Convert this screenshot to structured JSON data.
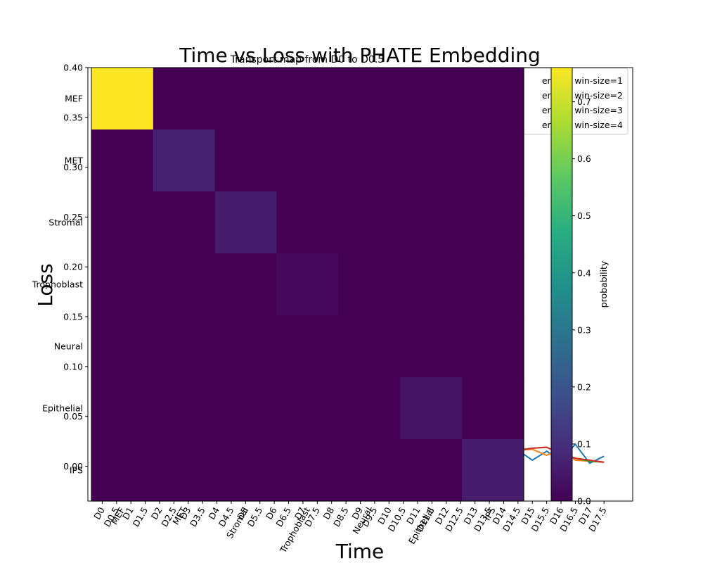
{
  "chart_data": [
    {
      "type": "line",
      "title": "Time vs Loss with PHATE Embedding",
      "xlabel": "Time",
      "ylabel": "Loss",
      "xlim": [
        -0.5,
        18.5
      ],
      "ylim": [
        -0.035,
        0.4
      ],
      "x": [
        14.5,
        15,
        15.5,
        16,
        16.5,
        17,
        17.5
      ],
      "x_tick_labels": [
        "D0",
        "D0.5",
        "D1",
        "D1.5",
        "D2",
        "D2.5",
        "D3",
        "D3.5",
        "D4",
        "D4.5",
        "D5",
        "D5.5",
        "D6",
        "D6.5",
        "D7",
        "D7.5",
        "D8",
        "D8.5",
        "D9",
        "D9.5",
        "D10",
        "D10.5",
        "D11",
        "D11.5",
        "D12",
        "D12.5",
        "D13",
        "D13.5",
        "D14",
        "D14.5",
        "D15",
        "D15.5",
        "D16",
        "D16.5",
        "D17",
        "D17.5"
      ],
      "y_ticks": [
        0.0,
        0.05,
        0.1,
        0.15,
        0.2,
        0.25,
        0.3,
        0.35,
        0.4
      ],
      "y_tick_labels": [
        "0.00",
        "0.05",
        "0.10",
        "0.15",
        "0.20",
        "0.25",
        "0.30",
        "0.35",
        "0.40"
      ],
      "legend_position": "upper-right",
      "legend_entries": [
        "ered w win-size=1",
        "ered w win-size=2",
        "ered w win-size=3",
        "ered w win-size=4"
      ],
      "series": [
        {
          "values": [
            0.016,
            0.006,
            0.015,
            0.006,
            0.022,
            0.003,
            0.01
          ],
          "color": "#1f77b4"
        },
        {
          "values": [
            0.016,
            0.017,
            0.011,
            0.017,
            0.006,
            0.005,
            0.004
          ],
          "color": "#ff7f0e"
        },
        {
          "values": [
            0.016,
            0.018,
            0.019,
            0.013,
            0.008,
            0.005,
            0.004
          ],
          "color": "#2ca02c"
        },
        {
          "values": [
            0.016,
            0.018,
            0.019,
            0.012,
            0.008,
            0.006,
            0.004
          ],
          "color": "#d62728"
        }
      ]
    },
    {
      "type": "heatmap",
      "title": "Transport map from D0 to D0.5",
      "row_labels": [
        "MEF",
        "MET",
        "Stromal",
        "Trophoblast",
        "Neural",
        "Epithelial",
        "IPS"
      ],
      "col_labels": [
        "MEF",
        "MET",
        "Stromal",
        "Trophoblast",
        "Neural",
        "Epithelial",
        "IPS"
      ],
      "values": [
        [
          0.76,
          0,
          0,
          0,
          0,
          0,
          0
        ],
        [
          0,
          0.07,
          0,
          0,
          0,
          0,
          0
        ],
        [
          0,
          0,
          0.06,
          0,
          0,
          0,
          0
        ],
        [
          0,
          0,
          0,
          0.02,
          0,
          0,
          0
        ],
        [
          0,
          0,
          0,
          0,
          0,
          0,
          0
        ],
        [
          0,
          0,
          0,
          0,
          0,
          0.04,
          0
        ],
        [
          0,
          0,
          0,
          0,
          0,
          0,
          0.06
        ]
      ],
      "vmin": 0,
      "vmax": 0.76,
      "colorbar_label": "probability",
      "colorbar_ticks": [
        0.0,
        0.1,
        0.2,
        0.3,
        0.4,
        0.5,
        0.6,
        0.7
      ],
      "colorbar_tick_labels": [
        "0.0",
        "0.1",
        "0.2",
        "0.3",
        "0.4",
        "0.5",
        "0.6",
        "0.7"
      ],
      "colormap": "viridis"
    }
  ]
}
